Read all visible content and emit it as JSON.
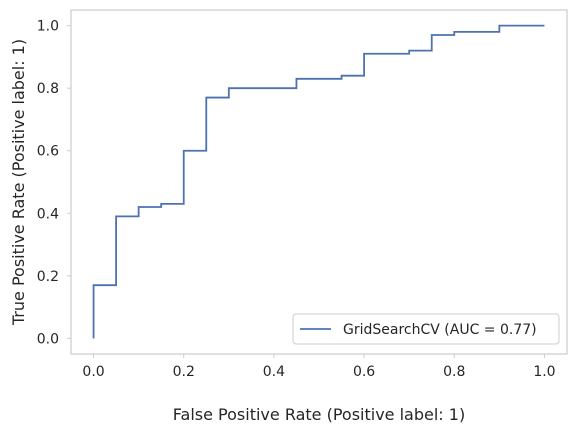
{
  "chart_data": {
    "type": "line",
    "title": "",
    "xlabel": "False Positive Rate (Positive label: 1)",
    "ylabel": "True Positive Rate (Positive label: 1)",
    "xlim": [
      -0.05,
      1.05
    ],
    "ylim": [
      -0.05,
      1.05
    ],
    "x_ticks": [
      "0.0",
      "0.2",
      "0.4",
      "0.6",
      "0.8",
      "1.0"
    ],
    "y_ticks": [
      "0.0",
      "0.2",
      "0.4",
      "0.6",
      "0.8",
      "1.0"
    ],
    "grid": false,
    "legend_position": "lower-right",
    "series": [
      {
        "name": "GridSearchCV (AUC = 0.77)",
        "color": "#4c72b0",
        "step": true,
        "x": [
          0.0,
          0.0,
          0.05,
          0.05,
          0.1,
          0.1,
          0.15,
          0.15,
          0.2,
          0.2,
          0.25,
          0.25,
          0.3,
          0.3,
          0.45,
          0.45,
          0.55,
          0.55,
          0.6,
          0.6,
          0.7,
          0.7,
          0.75,
          0.75,
          0.8,
          0.8,
          0.9,
          0.9,
          1.0
        ],
        "y": [
          0.0,
          0.17,
          0.17,
          0.39,
          0.39,
          0.42,
          0.42,
          0.43,
          0.43,
          0.6,
          0.6,
          0.77,
          0.77,
          0.8,
          0.8,
          0.83,
          0.83,
          0.84,
          0.84,
          0.91,
          0.91,
          0.92,
          0.92,
          0.97,
          0.97,
          0.98,
          0.98,
          1.0,
          1.0
        ]
      }
    ]
  }
}
